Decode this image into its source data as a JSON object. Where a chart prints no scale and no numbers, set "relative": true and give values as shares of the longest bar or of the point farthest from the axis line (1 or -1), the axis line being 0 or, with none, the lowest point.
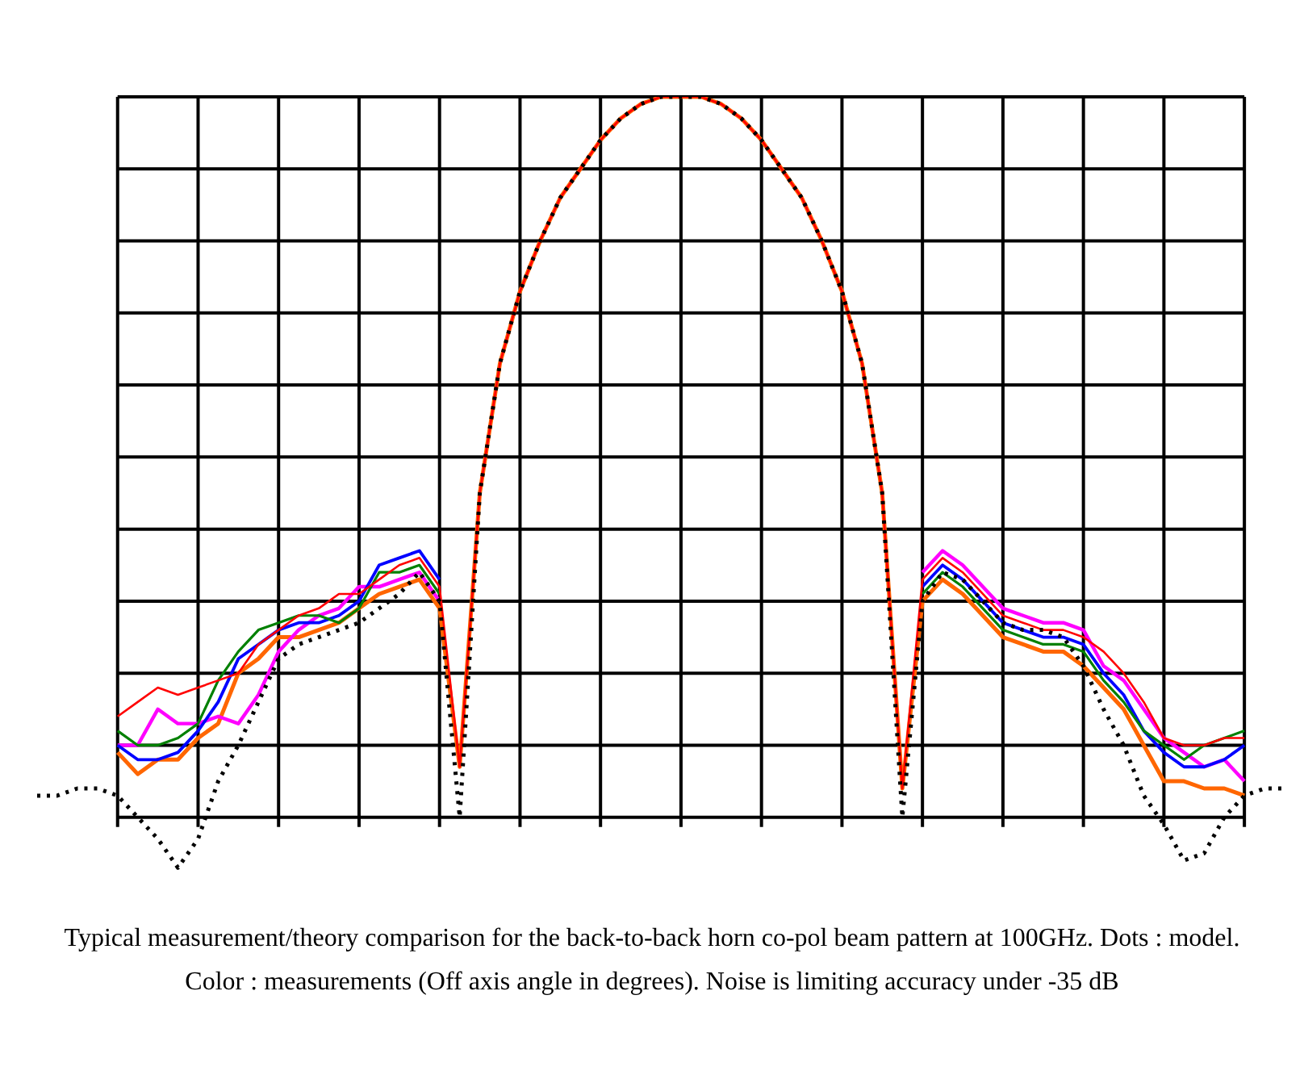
{
  "chart_data": {
    "type": "line",
    "relative": true,
    "grid": true,
    "legend": false,
    "marker": "none",
    "categories": [
      null,
      null,
      null,
      null,
      null,
      null,
      null,
      null,
      null,
      null,
      null,
      null,
      null,
      null,
      null,
      null,
      null,
      null,
      null,
      null,
      null,
      null,
      null,
      null,
      null,
      null,
      null,
      null,
      null,
      null,
      null,
      null,
      null,
      null,
      null,
      null,
      null,
      null,
      null,
      null,
      null,
      null,
      null,
      null,
      null,
      null,
      null,
      null,
      null,
      null,
      null,
      null,
      null,
      null,
      null,
      null,
      null,
      null,
      null,
      null,
      null,
      null,
      null
    ],
    "series": [
      {
        "color": "#ff0000",
        "values": [
          null,
          null,
          null,
          null,
          0.14,
          0.16,
          0.18,
          0.17,
          0.18,
          0.19,
          0.2,
          0.24,
          0.26,
          0.28,
          0.29,
          0.31,
          0.31,
          0.33,
          0.35,
          0.36,
          0.32,
          0.07,
          0.45,
          0.63,
          0.73,
          0.8,
          0.86,
          0.9,
          0.94,
          0.97,
          0.99,
          1.0,
          1.0,
          1.0,
          0.99,
          0.97,
          0.94,
          0.9,
          0.86,
          0.8,
          0.73,
          0.63,
          0.45,
          0.04,
          0.33,
          0.36,
          0.34,
          0.31,
          0.28,
          0.27,
          0.26,
          0.26,
          0.25,
          0.23,
          0.2,
          0.16,
          0.11,
          0.1,
          0.1,
          0.11,
          0.11,
          null,
          null
        ]
      },
      {
        "color": "#008000",
        "values": [
          null,
          null,
          null,
          null,
          0.12,
          0.1,
          0.1,
          0.11,
          0.13,
          0.19,
          0.23,
          0.26,
          0.27,
          0.28,
          0.28,
          0.27,
          0.29,
          0.34,
          0.34,
          0.35,
          0.31,
          null,
          null,
          null,
          null,
          null,
          null,
          null,
          null,
          null,
          null,
          null,
          null,
          null,
          null,
          null,
          null,
          null,
          null,
          null,
          null,
          null,
          null,
          null,
          0.31,
          0.34,
          0.32,
          0.29,
          0.26,
          0.25,
          0.24,
          0.24,
          0.23,
          0.19,
          0.16,
          0.12,
          0.1,
          0.08,
          0.1,
          0.11,
          0.12,
          null,
          null
        ]
      },
      {
        "color": "#0000ff",
        "values": [
          null,
          null,
          null,
          null,
          0.1,
          0.08,
          0.08,
          0.09,
          0.12,
          0.16,
          0.22,
          0.24,
          0.26,
          0.27,
          0.27,
          0.28,
          0.3,
          0.35,
          0.36,
          0.37,
          0.33,
          null,
          null,
          null,
          null,
          null,
          null,
          null,
          null,
          null,
          null,
          null,
          null,
          null,
          null,
          null,
          null,
          null,
          null,
          null,
          null,
          null,
          null,
          null,
          0.32,
          0.35,
          0.33,
          0.3,
          0.27,
          0.26,
          0.25,
          0.25,
          0.24,
          0.2,
          0.17,
          0.12,
          0.09,
          0.07,
          0.07,
          0.08,
          0.1,
          null,
          null
        ]
      },
      {
        "color": "#ff00ff",
        "values": [
          null,
          null,
          null,
          null,
          0.1,
          0.1,
          0.15,
          0.13,
          0.13,
          0.14,
          0.13,
          0.17,
          0.23,
          0.26,
          0.28,
          0.29,
          0.32,
          0.32,
          0.33,
          0.34,
          0.3,
          null,
          null,
          null,
          null,
          null,
          null,
          null,
          null,
          null,
          null,
          null,
          null,
          null,
          null,
          null,
          null,
          null,
          null,
          null,
          null,
          null,
          null,
          null,
          0.34,
          0.37,
          0.35,
          0.32,
          0.29,
          0.28,
          0.27,
          0.27,
          0.26,
          0.21,
          0.19,
          0.15,
          0.11,
          0.09,
          0.07,
          0.08,
          0.05,
          null,
          null
        ]
      },
      {
        "color": "#ff6600",
        "values": [
          null,
          null,
          null,
          null,
          0.09,
          0.06,
          0.08,
          0.08,
          0.11,
          0.13,
          0.2,
          0.22,
          0.25,
          0.25,
          0.26,
          0.27,
          0.29,
          0.31,
          0.32,
          0.33,
          0.29,
          0.07,
          0.45,
          0.63,
          0.73,
          0.8,
          0.86,
          0.9,
          0.94,
          0.97,
          0.99,
          1.0,
          1.0,
          1.0,
          0.99,
          0.97,
          0.94,
          0.9,
          0.86,
          0.8,
          0.73,
          0.63,
          0.45,
          0.04,
          0.3,
          0.33,
          0.31,
          0.28,
          0.25,
          0.24,
          0.23,
          0.23,
          0.21,
          0.18,
          0.15,
          0.1,
          0.05,
          0.05,
          0.04,
          0.04,
          0.03,
          null,
          null
        ]
      },
      {
        "color": "#000000",
        "line_style": "dotted",
        "values": [
          0.03,
          0.03,
          0.04,
          0.04,
          0.03,
          0.0,
          -0.03,
          -0.07,
          -0.03,
          0.05,
          0.1,
          0.16,
          0.22,
          0.24,
          0.25,
          0.26,
          0.27,
          0.29,
          0.31,
          0.34,
          0.3,
          0.0,
          0.45,
          0.63,
          0.73,
          0.8,
          0.86,
          0.9,
          0.94,
          0.97,
          0.99,
          1.0,
          1.0,
          1.0,
          0.99,
          0.97,
          0.94,
          0.9,
          0.86,
          0.8,
          0.73,
          0.63,
          0.45,
          0.0,
          0.3,
          0.34,
          0.33,
          0.3,
          0.27,
          0.26,
          0.26,
          0.25,
          0.21,
          0.15,
          0.1,
          0.03,
          -0.01,
          -0.06,
          -0.05,
          0.0,
          0.03,
          0.04,
          0.04
        ]
      }
    ],
    "annotations": [
      "Typical measurement/theory comparison for the back-to-back horn co-pol beam pattern at 100GHz. Dots : model. Color : measurements (Off axis angle in degrees). Noise is limiting accuracy under -35 dB"
    ]
  }
}
